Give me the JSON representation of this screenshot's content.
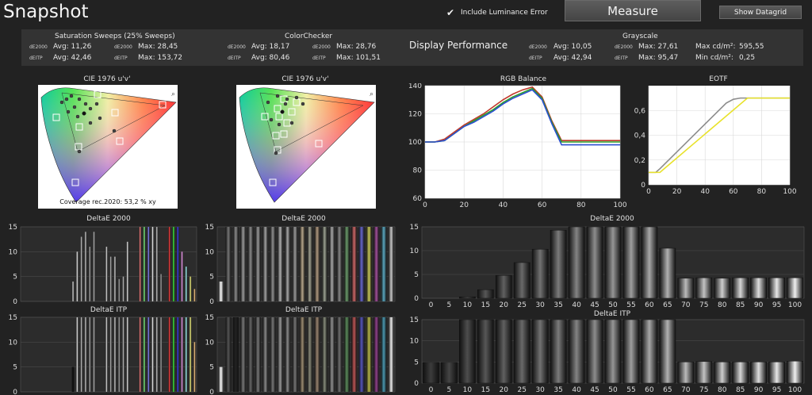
{
  "header": {
    "title": "Snapshot",
    "include_luminance_label": "Include Luminance Error",
    "include_luminance_checked": true,
    "measure_label": "Measure",
    "datagrid_label": "Show Datagrid"
  },
  "summary": {
    "saturation": {
      "title": "Saturation Sweeps (25% Sweeps)",
      "de2000_label": "dE2000",
      "deitp_label": "dEITP",
      "de2000_avg": "Avg: 11,26",
      "de2000_max": "Max: 28,45",
      "deitp_avg": "Avg: 42,46",
      "deitp_max": "Max: 153,72"
    },
    "colorchecker": {
      "title": "ColorChecker",
      "de2000_label": "dE2000",
      "deitp_label": "dEITP",
      "de2000_avg": "Avg: 18,17",
      "de2000_max": "Max: 28,76",
      "deitp_avg": "Avg: 80,46",
      "deitp_max": "Max: 101,51"
    },
    "display_performance": "Display Performance",
    "grayscale": {
      "title": "Grayscale",
      "de2000_label": "dE2000",
      "deitp_label": "dEITP",
      "de2000_avg": "Avg: 10,05",
      "de2000_max": "Max: 27,61",
      "deitp_avg": "Avg: 42,94",
      "deitp_max": "Max: 95,47",
      "max_cd_label": "Max cd/m²:",
      "max_cd": "595,55",
      "min_cd_label": "Min cd/m²:",
      "min_cd": "0,25"
    }
  },
  "cie_left": {
    "title": "CIE 1976 u'v'",
    "coverage": "Coverage rec.2020:  53,2 % xy"
  },
  "cie_right": {
    "title": "CIE 1976 u'v'"
  },
  "panel_titles": {
    "sat_de2000": "DeltaE 2000",
    "sat_itp": "DeltaE ITP",
    "cc_de2000": "DeltaE 2000",
    "cc_itp": "DeltaE ITP",
    "gs_de2000": "DeltaE 2000",
    "gs_itp": "DeltaE ITP",
    "rgb_balance": "RGB Balance",
    "eotf": "EOTF"
  },
  "chart_data": [
    {
      "type": "line",
      "title": "RGB Balance",
      "x": [
        0,
        5,
        10,
        15,
        20,
        25,
        30,
        35,
        40,
        45,
        50,
        55,
        60,
        65,
        70,
        75,
        80,
        85,
        90,
        95,
        100
      ],
      "x_ticks": [
        "0",
        "20",
        "40",
        "60",
        "80",
        "100"
      ],
      "y_ticks": [
        "60",
        "80",
        "100",
        "120",
        "140"
      ],
      "xlim": [
        0,
        100
      ],
      "ylim": [
        60,
        140
      ],
      "series": [
        {
          "color": "#c0392b",
          "values": [
            100,
            100,
            102,
            107,
            112,
            116,
            120,
            125,
            130,
            134,
            137,
            139,
            132,
            115,
            101,
            101,
            101,
            101,
            101,
            101,
            101
          ]
        },
        {
          "color": "#2a9d2a",
          "values": [
            100,
            100,
            101,
            106,
            111,
            115,
            119,
            123,
            128,
            132,
            135,
            138,
            131,
            114,
            100,
            100,
            100,
            100,
            100,
            100,
            100
          ]
        },
        {
          "color": "#2b4fd1",
          "values": [
            100,
            100,
            101,
            106,
            111,
            114,
            118,
            122,
            127,
            131,
            134,
            137,
            130,
            113,
            98,
            98,
            98,
            98,
            98,
            98,
            98
          ]
        }
      ]
    },
    {
      "type": "line",
      "title": "EOTF",
      "x_ticks": [
        "0",
        "20",
        "40",
        "60",
        "80",
        "100"
      ],
      "y_ticks": [
        "0",
        "0,2",
        "0,4",
        "0,6"
      ],
      "xlim": [
        0,
        100
      ],
      "ylim": [
        0,
        0.8
      ],
      "series": [
        {
          "color": "#8c8c8c",
          "x": [
            0,
            5,
            8,
            55,
            60,
            65,
            100
          ],
          "values": [
            0.1,
            0.1,
            0.13,
            0.66,
            0.69,
            0.7,
            0.7
          ]
        },
        {
          "color": "#e8e22a",
          "x": [
            0,
            8,
            10,
            70,
            100
          ],
          "values": [
            0.1,
            0.1,
            0.12,
            0.7,
            0.7
          ]
        }
      ]
    },
    {
      "type": "bar",
      "title": "DeltaE 2000",
      "categories": [
        "0",
        "5",
        "10",
        "15",
        "20",
        "25",
        "30",
        "35",
        "40",
        "45",
        "50",
        "55",
        "60",
        "65",
        "70",
        "75",
        "80",
        "85",
        "90",
        "95",
        "100"
      ],
      "values": [
        0,
        0,
        0.3,
        1.8,
        4.8,
        7.5,
        10.3,
        14.3,
        15,
        15,
        15,
        15,
        15,
        10.5,
        4.2,
        4.3,
        4.2,
        4.3,
        4.3,
        4.3,
        4.3
      ],
      "ylim": [
        0,
        15
      ],
      "y_ticks": [
        "0",
        "5",
        "10",
        "15"
      ]
    },
    {
      "type": "bar",
      "title": "DeltaE ITP",
      "categories": [
        "0",
        "5",
        "10",
        "15",
        "20",
        "25",
        "30",
        "35",
        "40",
        "45",
        "50",
        "55",
        "60",
        "65",
        "70",
        "75",
        "80",
        "85",
        "90",
        "95",
        "100"
      ],
      "values": [
        4.9,
        4.9,
        15,
        15,
        15,
        15,
        15,
        15,
        15,
        15,
        15,
        15,
        15,
        15,
        5,
        5.1,
        5,
        5,
        5,
        5,
        5.2
      ],
      "ylim": [
        0,
        15
      ],
      "y_ticks": [
        "0",
        "5",
        "10",
        "15"
      ]
    },
    {
      "type": "bar",
      "title": "DeltaE 2000",
      "values": [
        0,
        0,
        0,
        0,
        0,
        0,
        0,
        0,
        0,
        0,
        0,
        0,
        4,
        10,
        13,
        14,
        11,
        14,
        0,
        0,
        11,
        9,
        9,
        4.5,
        5,
        12,
        0,
        0,
        15,
        15,
        15,
        15,
        15,
        5.5,
        0,
        15,
        15,
        15,
        10,
        7,
        5,
        2.5
      ],
      "colors": [
        "#ffffff",
        "#dddddd",
        "#bbbbbb",
        "#999999",
        "#888888",
        "#777777",
        "#666666",
        "#555555",
        "#444444",
        "#333333",
        "#cccccc",
        "#aaaaaa",
        "#dddddd",
        "#eeeeee",
        "#c8c8c8",
        "#d0d0d0",
        "#b0b0b0",
        "#c0c0c0",
        "#404040",
        "#404040",
        "#e0e0e0",
        "#b8b8b8",
        "#d8d8d8",
        "#a8a8a8",
        "#c8c8c8",
        "#e8e8e8",
        "#333333",
        "#333333",
        "#ff8888",
        "#88ff88",
        "#8888ff",
        "#ffffff",
        "#cccccc",
        "#aaaaaa",
        "#333333",
        "#ff4444",
        "#44ff44",
        "#4444ff",
        "#ffaaff",
        "#aaffff",
        "#ffff88",
        "#ffcc88"
      ],
      "ylim": [
        0,
        15
      ],
      "y_ticks": [
        "0",
        "5",
        "10",
        "15"
      ]
    },
    {
      "type": "bar",
      "title": "DeltaE ITP",
      "values": [
        0,
        0,
        0,
        0,
        0,
        0,
        0,
        0,
        0,
        0,
        0,
        0,
        5,
        15,
        15,
        15,
        15,
        15,
        0,
        0,
        15,
        15,
        15,
        15,
        15,
        15,
        0,
        0,
        15,
        15,
        15,
        15,
        15,
        15,
        0,
        15,
        15,
        15,
        15,
        15,
        15,
        10
      ],
      "colors": [
        "#ffffff",
        "#dddddd",
        "#bbbbbb",
        "#999999",
        "#888888",
        "#777777",
        "#666666",
        "#555555",
        "#444444",
        "#333333",
        "#cccccc",
        "#aaaaaa",
        "#111111",
        "#eeeeee",
        "#c8c8c8",
        "#d0d0d0",
        "#b0b0b0",
        "#c0c0c0",
        "#404040",
        "#404040",
        "#e0e0e0",
        "#b8b8b8",
        "#d8d8d8",
        "#a8a8a8",
        "#c8c8c8",
        "#e8e8e8",
        "#333333",
        "#333333",
        "#ff8888",
        "#88ff88",
        "#8888ff",
        "#ffffff",
        "#cccccc",
        "#aaaaaa",
        "#333333",
        "#ff4444",
        "#44ff44",
        "#4444ff",
        "#ffaaff",
        "#aaffff",
        "#ffff88",
        "#ffcc88"
      ],
      "ylim": [
        0,
        15
      ],
      "y_ticks": [
        "0",
        "5",
        "10",
        "15"
      ]
    },
    {
      "type": "bar",
      "title": "DeltaE 2000",
      "values": [
        4,
        15,
        15,
        15,
        15,
        15,
        15,
        15,
        15,
        15,
        15,
        15,
        15,
        15,
        15,
        15,
        15,
        15,
        15,
        15,
        15,
        15,
        15,
        15
      ],
      "colors": [
        "#ffffff",
        "#777777",
        "#8a8a8a",
        "#9a9a9a",
        "#8a8a8a",
        "#999999",
        "#a0a0a0",
        "#8f8f8f",
        "#b0b0b0",
        "#a5a5a5",
        "#9a9a9a",
        "#b5a58a",
        "#a0a090",
        "#b09a80",
        "#9aa090",
        "#a8a8a8",
        "#888888",
        "#6a9a6a",
        "#cc6666",
        "#6666cc",
        "#c9c95a",
        "#a04f9a",
        "#5aa8c0",
        "#c8c8c8"
      ],
      "ylim": [
        0,
        15
      ],
      "y_ticks": [
        "0",
        "5",
        "10",
        "15"
      ]
    },
    {
      "type": "bar",
      "title": "DeltaE ITP",
      "values": [
        5,
        15,
        15,
        15,
        15,
        15,
        15,
        15,
        15,
        15,
        15,
        15,
        15,
        15,
        15,
        15,
        15,
        15,
        15,
        15,
        15,
        15,
        15,
        15
      ],
      "colors": [
        "#ffffff",
        "#555555",
        "#222222",
        "#777777",
        "#666666",
        "#777777",
        "#888888",
        "#777777",
        "#999999",
        "#888888",
        "#777777",
        "#9a8a70",
        "#888878",
        "#9a8470",
        "#858a7a",
        "#909090",
        "#707070",
        "#5a8a5a",
        "#bb5555",
        "#5555bb",
        "#b8b84a",
        "#8f3f8a",
        "#4a98b0",
        "#eeeeee"
      ],
      "ylim": [
        0,
        15
      ],
      "y_ticks": [
        "0",
        "5",
        "10",
        "15"
      ]
    }
  ]
}
